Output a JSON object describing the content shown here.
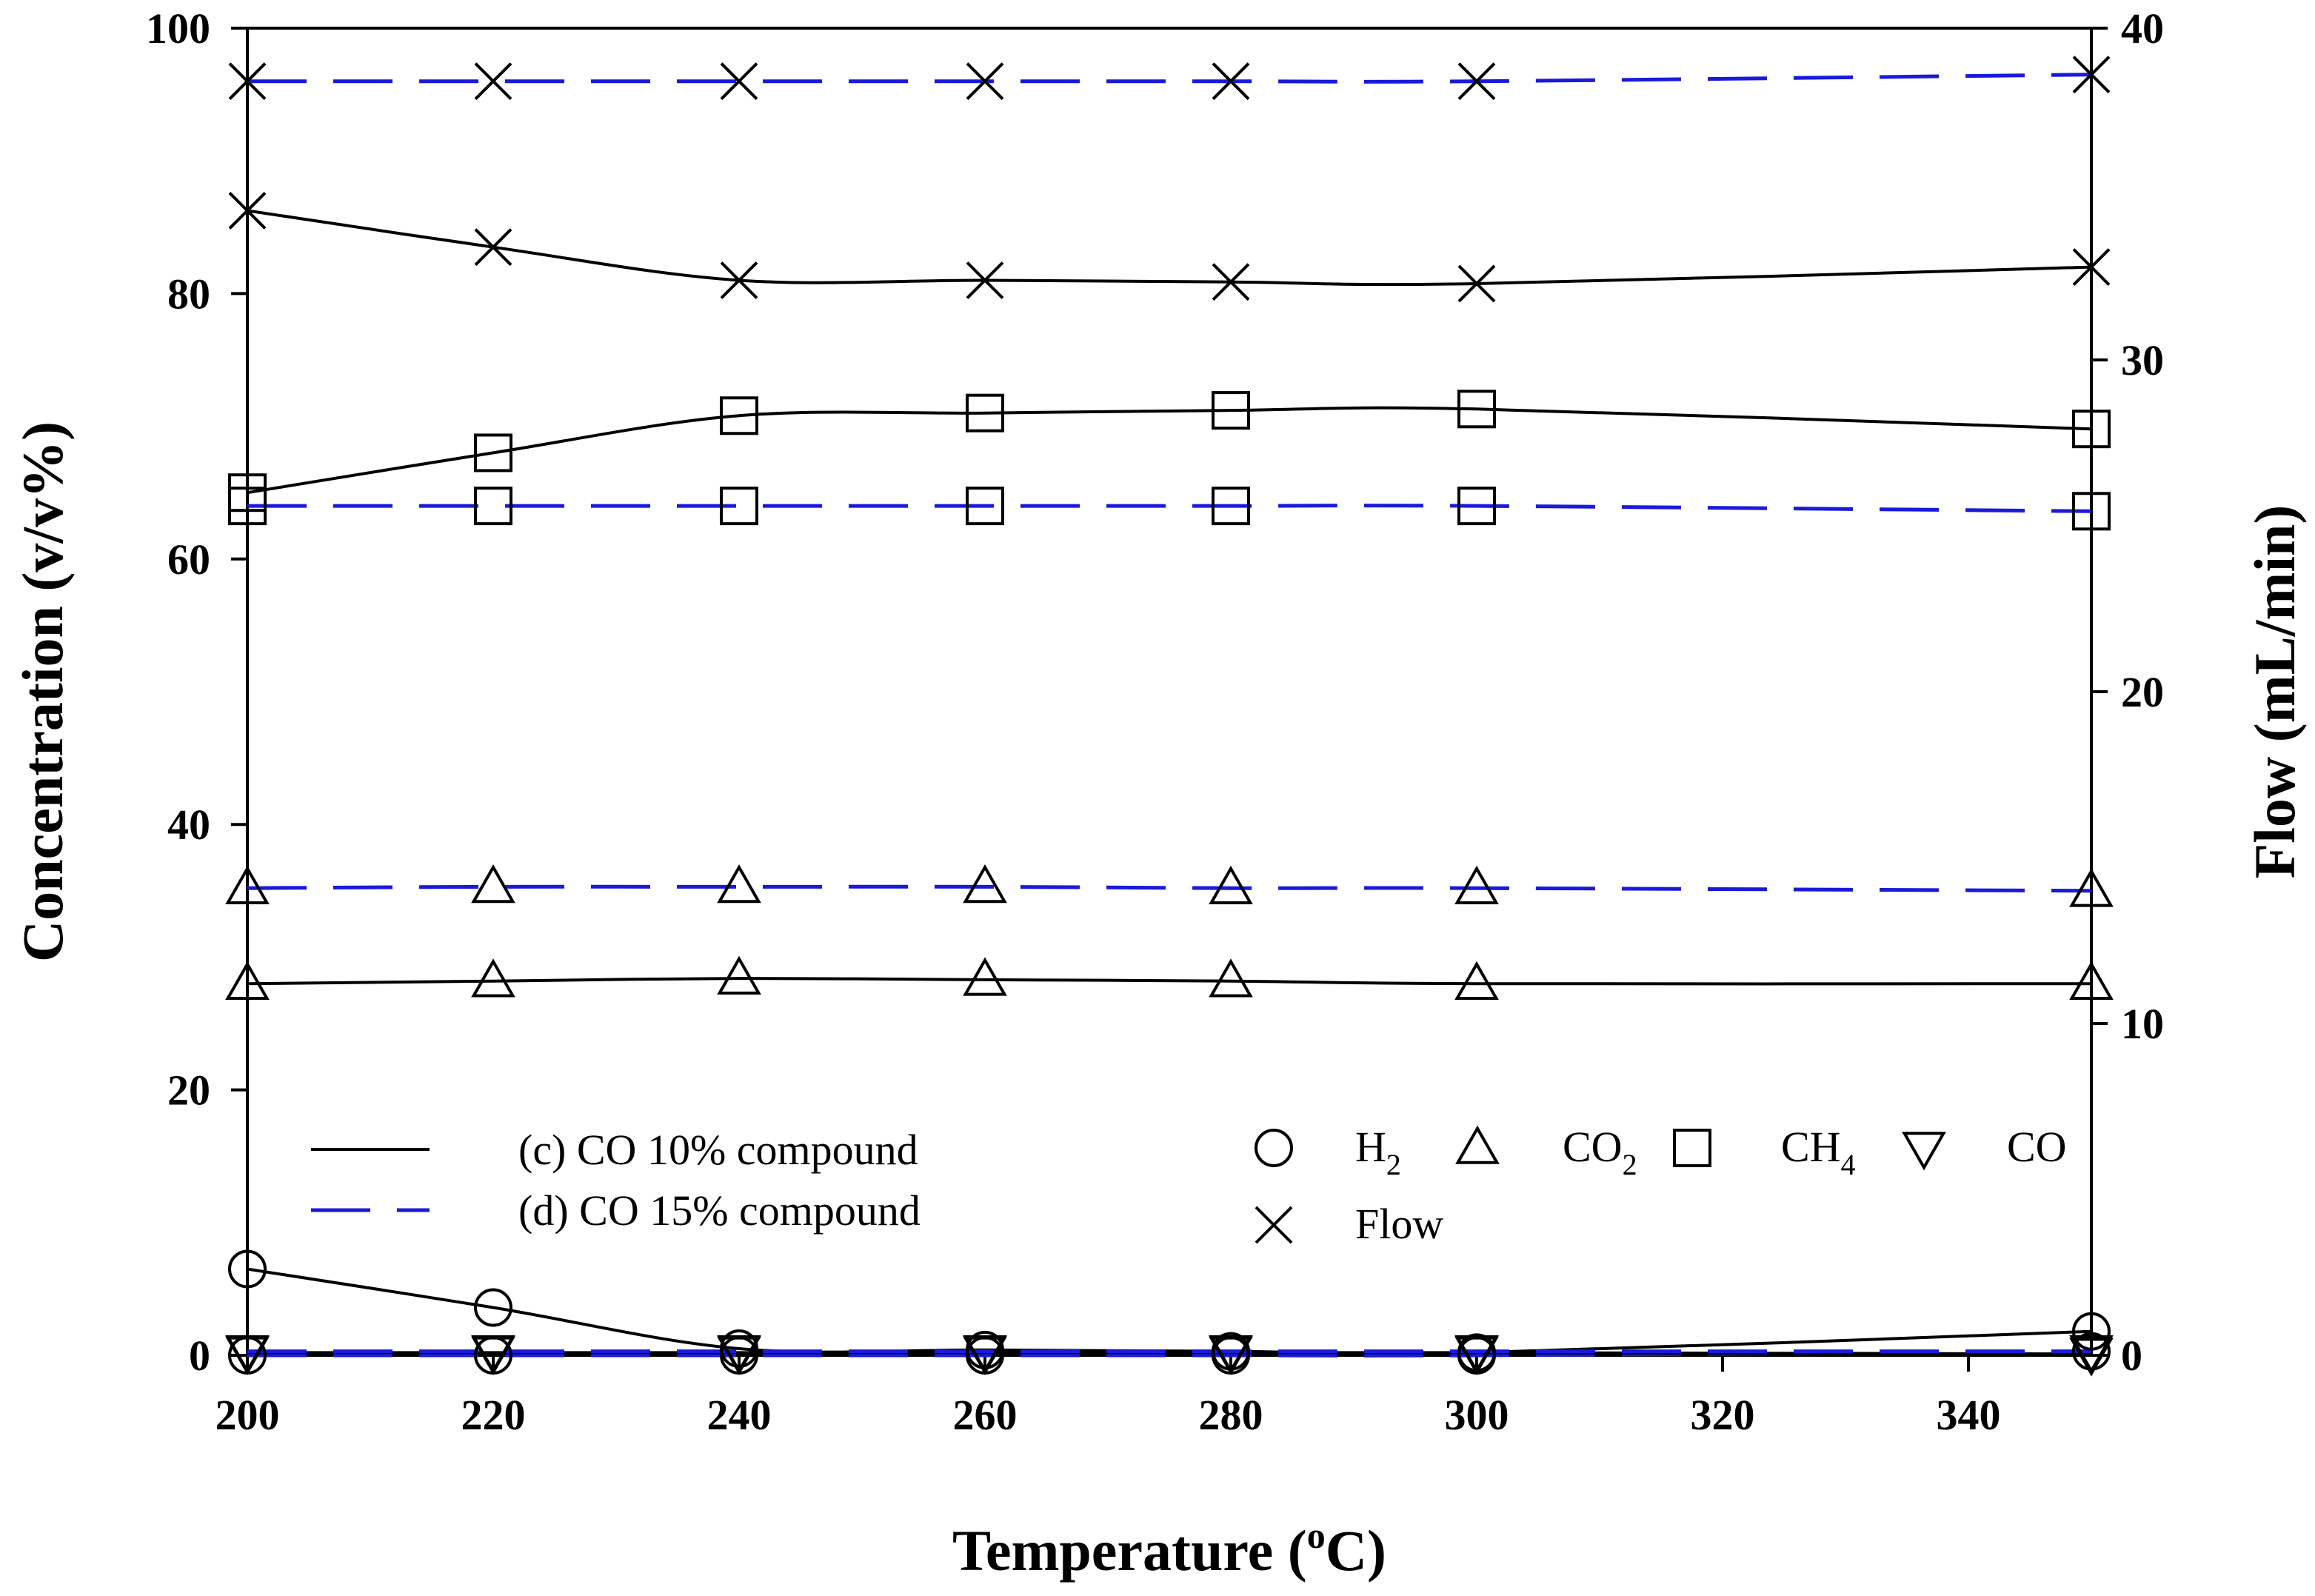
{
  "chart_data": {
    "type": "line",
    "title": "",
    "xlabel_main": "Temperature (",
    "xlabel_sup": "o",
    "xlabel_end": "C)",
    "ylabel": "Concentration (v/v%)",
    "y2label": "Flow (mL/min)",
    "xlim": [
      200,
      350
    ],
    "ylim": [
      0,
      100
    ],
    "y2lim": [
      0,
      40
    ],
    "x_ticks": [
      200,
      220,
      240,
      260,
      280,
      300,
      320,
      340
    ],
    "y_ticks": [
      0,
      20,
      40,
      60,
      80,
      100
    ],
    "y2_ticks": [
      0,
      10,
      20,
      30,
      40
    ],
    "x": [
      200,
      220,
      240,
      260,
      280,
      300,
      350
    ],
    "style_legend": [
      {
        "key": "c",
        "label": "(c) CO 10% compound",
        "color": "#000000",
        "dash": "solid"
      },
      {
        "key": "d",
        "label": "(d) CO 15% compound",
        "color": "#1a1adb",
        "dash": "dashed"
      }
    ],
    "marker_legend": [
      {
        "key": "H2",
        "label": "H",
        "sub": "2",
        "marker": "circle"
      },
      {
        "key": "CO2",
        "label": "CO",
        "sub": "2",
        "marker": "triangle-up"
      },
      {
        "key": "CH4",
        "label": "CH",
        "sub": "4",
        "marker": "square"
      },
      {
        "key": "CO",
        "label": "CO",
        "sub": "",
        "marker": "triangle-down"
      },
      {
        "key": "Flow",
        "label": "Flow",
        "sub": "",
        "marker": "x"
      }
    ],
    "series": [
      {
        "name": "H2 (c) CO 10% compound",
        "marker": "circle",
        "style": "c",
        "axis": "left",
        "values": [
          6.5,
          3.6,
          0.5,
          0.4,
          0.3,
          0.2,
          1.8
        ]
      },
      {
        "name": "H2 (d) CO 15% compound",
        "marker": "circle",
        "style": "d",
        "axis": "left",
        "values": [
          0.0,
          0.0,
          0.0,
          0.0,
          0.0,
          0.0,
          0.3
        ]
      },
      {
        "name": "CO2 (c) CO 10% compound",
        "marker": "triangle-up",
        "style": "c",
        "axis": "left",
        "values": [
          28.0,
          28.2,
          28.4,
          28.3,
          28.2,
          28.0,
          28.0
        ]
      },
      {
        "name": "CO2 (d) CO 15% compound",
        "marker": "triangle-up",
        "style": "d",
        "axis": "left",
        "values": [
          35.2,
          35.3,
          35.3,
          35.3,
          35.2,
          35.2,
          35.0
        ]
      },
      {
        "name": "CH4 (c) CO 10% compound",
        "marker": "square",
        "style": "c",
        "axis": "left",
        "values": [
          65.0,
          68.0,
          70.8,
          71.0,
          71.2,
          71.3,
          69.8
        ]
      },
      {
        "name": "CH4 (d) CO 15% compound",
        "marker": "square",
        "style": "d",
        "axis": "left",
        "values": [
          64.0,
          64.0,
          64.0,
          64.0,
          64.0,
          64.0,
          63.6
        ]
      },
      {
        "name": "CO (c) CO 10% compound",
        "marker": "triangle-down",
        "style": "c",
        "axis": "left",
        "values": [
          0.2,
          0.2,
          0.2,
          0.2,
          0.2,
          0.2,
          0.1
        ]
      },
      {
        "name": "CO (d) CO 15% compound",
        "marker": "triangle-down",
        "style": "d",
        "axis": "left",
        "values": [
          0.3,
          0.3,
          0.3,
          0.3,
          0.3,
          0.3,
          0.3
        ]
      },
      {
        "name": "Flow (c) CO 10% compound",
        "marker": "x",
        "style": "c",
        "axis": "right",
        "values": [
          34.5,
          33.4,
          32.4,
          32.4,
          32.35,
          32.3,
          32.8
        ]
      },
      {
        "name": "Flow (d) CO 15% compound",
        "marker": "x",
        "style": "d",
        "axis": "right",
        "values": [
          38.4,
          38.4,
          38.4,
          38.4,
          38.4,
          38.4,
          38.6
        ]
      }
    ]
  }
}
